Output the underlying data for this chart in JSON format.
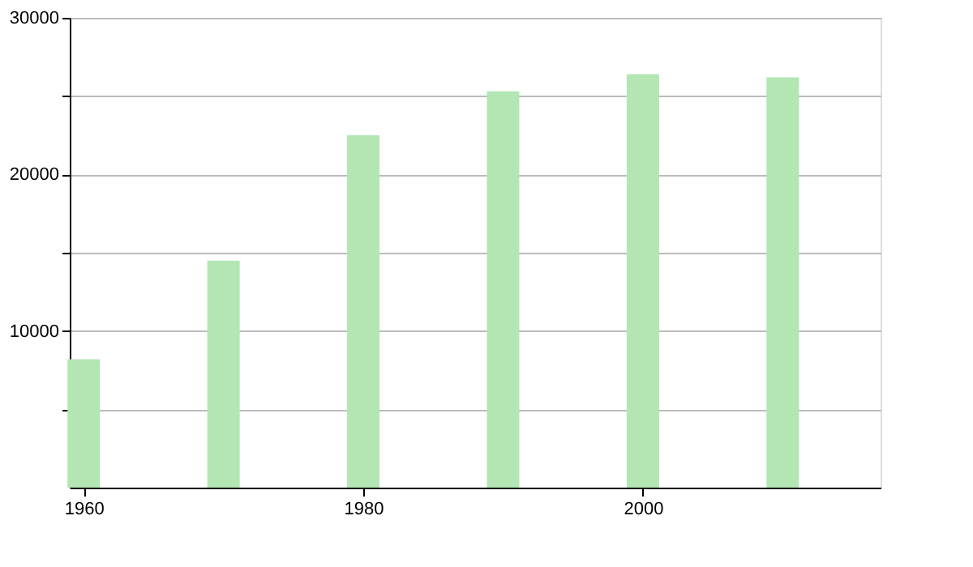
{
  "chart_data": {
    "type": "bar",
    "x": [
      1960,
      1970,
      1980,
      1990,
      2000,
      2010
    ],
    "series": [
      {
        "color": "#b3e6b3",
        "values": [
          8200,
          14500,
          22500,
          25300,
          26400,
          26200
        ]
      }
    ],
    "xlim": [
      1959,
      2017
    ],
    "xticks": [
      1960,
      1980,
      2000
    ],
    "ylim": [
      0,
      30000
    ],
    "yticks": [
      {
        "value": 5000,
        "label": null
      },
      10000,
      {
        "value": 15000,
        "label": null
      },
      20000,
      {
        "value": 25000,
        "label": null
      },
      30000
    ],
    "grid": "y",
    "legend": false
  }
}
